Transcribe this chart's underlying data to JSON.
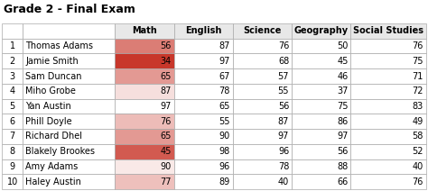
{
  "title": "Grade 2 - Final Exam",
  "header_labels": [
    "Math",
    "English",
    "Science",
    "Geography",
    "Social Studies"
  ],
  "rows": [
    [
      1,
      "Thomas Adams",
      56,
      87,
      76,
      50,
      76
    ],
    [
      2,
      "Jamie Smith",
      34,
      97,
      68,
      45,
      75
    ],
    [
      3,
      "Sam Duncan",
      65,
      67,
      57,
      46,
      71
    ],
    [
      4,
      "Miho Grobe",
      87,
      78,
      55,
      37,
      72
    ],
    [
      5,
      "Yan Austin",
      97,
      65,
      56,
      75,
      83
    ],
    [
      6,
      "Phill Doyle",
      76,
      55,
      87,
      86,
      49
    ],
    [
      7,
      "Richard Dhel",
      65,
      90,
      97,
      97,
      58
    ],
    [
      8,
      "Blakely Brookes",
      45,
      98,
      96,
      56,
      52
    ],
    [
      9,
      "Amy Adams",
      90,
      96,
      78,
      88,
      40
    ],
    [
      10,
      "Haley Austin",
      77,
      89,
      40,
      66,
      76
    ]
  ],
  "color_min": 34,
  "color_max": 97,
  "color_low": [
    0.784,
    0.216,
    0.169
  ],
  "color_high": [
    1.0,
    1.0,
    1.0
  ],
  "header_bg": "#e8e8e8",
  "title_fontsize": 9,
  "cell_fontsize": 7,
  "header_fontsize": 7,
  "fig_w": 4.74,
  "fig_h": 2.12,
  "dpi": 100
}
